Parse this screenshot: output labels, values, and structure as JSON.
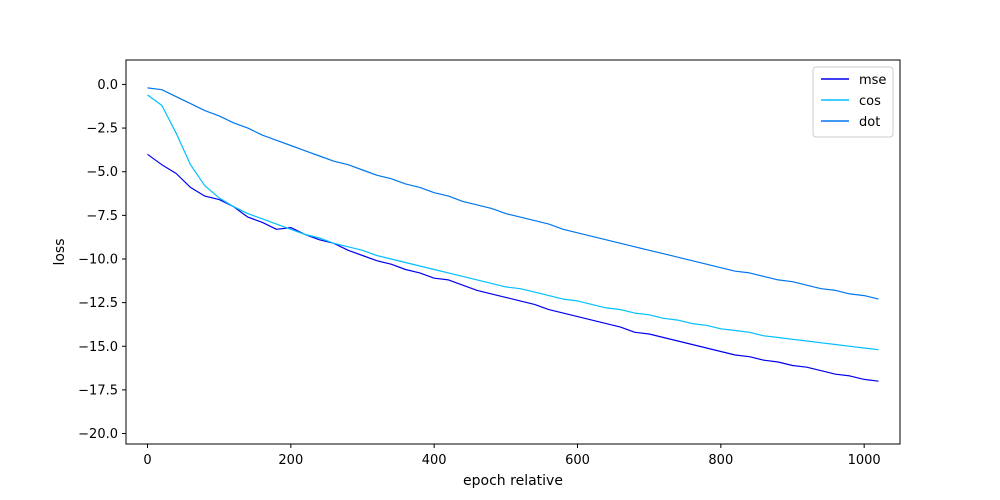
{
  "chart_data": {
    "type": "line",
    "title": "",
    "xlabel": "epoch relative",
    "ylabel": "loss",
    "xlim": [
      -30,
      1050
    ],
    "ylim": [
      -20.6,
      1.4
    ],
    "xticks": [
      0,
      200,
      400,
      600,
      800,
      1000
    ],
    "yticks": [
      0.0,
      -2.5,
      -5.0,
      -7.5,
      -10.0,
      -12.5,
      -15.0,
      -17.5,
      -20.0
    ],
    "xtick_labels": [
      "0",
      "200",
      "400",
      "600",
      "800",
      "1000"
    ],
    "ytick_labels": [
      "0.0",
      "−2.5",
      "−5.0",
      "−7.5",
      "−10.0",
      "−12.5",
      "−15.0",
      "−17.5",
      "−20.0"
    ],
    "grid": false,
    "legend_position": "top-right",
    "x": [
      0,
      20,
      40,
      60,
      80,
      100,
      120,
      140,
      160,
      180,
      200,
      220,
      240,
      260,
      280,
      300,
      320,
      340,
      360,
      380,
      400,
      420,
      440,
      460,
      480,
      500,
      520,
      540,
      560,
      580,
      600,
      620,
      640,
      660,
      680,
      700,
      720,
      740,
      760,
      780,
      800,
      820,
      840,
      860,
      880,
      900,
      920,
      940,
      960,
      980,
      1000,
      1020
    ],
    "series": [
      {
        "name": "mse",
        "color": "#0000ee",
        "values": [
          -4.0,
          -4.6,
          -5.1,
          -5.9,
          -6.4,
          -6.6,
          -7.0,
          -7.6,
          -7.9,
          -8.3,
          -8.2,
          -8.6,
          -8.9,
          -9.1,
          -9.5,
          -9.8,
          -10.1,
          -10.3,
          -10.6,
          -10.8,
          -11.1,
          -11.2,
          -11.5,
          -11.8,
          -12.0,
          -12.2,
          -12.4,
          -12.6,
          -12.9,
          -13.1,
          -13.3,
          -13.5,
          -13.7,
          -13.9,
          -14.2,
          -14.3,
          -14.5,
          -14.7,
          -14.9,
          -15.1,
          -15.3,
          -15.5,
          -15.6,
          -15.8,
          -15.9,
          -16.1,
          -16.2,
          -16.4,
          -16.6,
          -16.7,
          -16.9,
          -17.0
        ]
      },
      {
        "name": "cos",
        "color": "#00bfff",
        "values": [
          -0.6,
          -1.2,
          -2.8,
          -4.6,
          -5.8,
          -6.5,
          -7.0,
          -7.4,
          -7.7,
          -8.0,
          -8.3,
          -8.6,
          -8.8,
          -9.1,
          -9.3,
          -9.5,
          -9.8,
          -10.0,
          -10.2,
          -10.4,
          -10.6,
          -10.8,
          -11.0,
          -11.2,
          -11.4,
          -11.6,
          -11.7,
          -11.9,
          -12.1,
          -12.3,
          -12.4,
          -12.6,
          -12.8,
          -12.9,
          -13.1,
          -13.2,
          -13.4,
          -13.5,
          -13.7,
          -13.8,
          -14.0,
          -14.1,
          -14.2,
          -14.4,
          -14.5,
          -14.6,
          -14.7,
          -14.8,
          -14.9,
          -15.0,
          -15.1,
          -15.2
        ]
      },
      {
        "name": "dot",
        "color": "#0077ee",
        "values": [
          -0.2,
          -0.3,
          -0.7,
          -1.1,
          -1.5,
          -1.8,
          -2.2,
          -2.5,
          -2.9,
          -3.2,
          -3.5,
          -3.8,
          -4.1,
          -4.4,
          -4.6,
          -4.9,
          -5.2,
          -5.4,
          -5.7,
          -5.9,
          -6.2,
          -6.4,
          -6.7,
          -6.9,
          -7.1,
          -7.4,
          -7.6,
          -7.8,
          -8.0,
          -8.3,
          -8.5,
          -8.7,
          -8.9,
          -9.1,
          -9.3,
          -9.5,
          -9.7,
          -9.9,
          -10.1,
          -10.3,
          -10.5,
          -10.7,
          -10.8,
          -11.0,
          -11.2,
          -11.3,
          -11.5,
          -11.7,
          -11.8,
          -12.0,
          -12.1,
          -12.3
        ]
      }
    ]
  }
}
